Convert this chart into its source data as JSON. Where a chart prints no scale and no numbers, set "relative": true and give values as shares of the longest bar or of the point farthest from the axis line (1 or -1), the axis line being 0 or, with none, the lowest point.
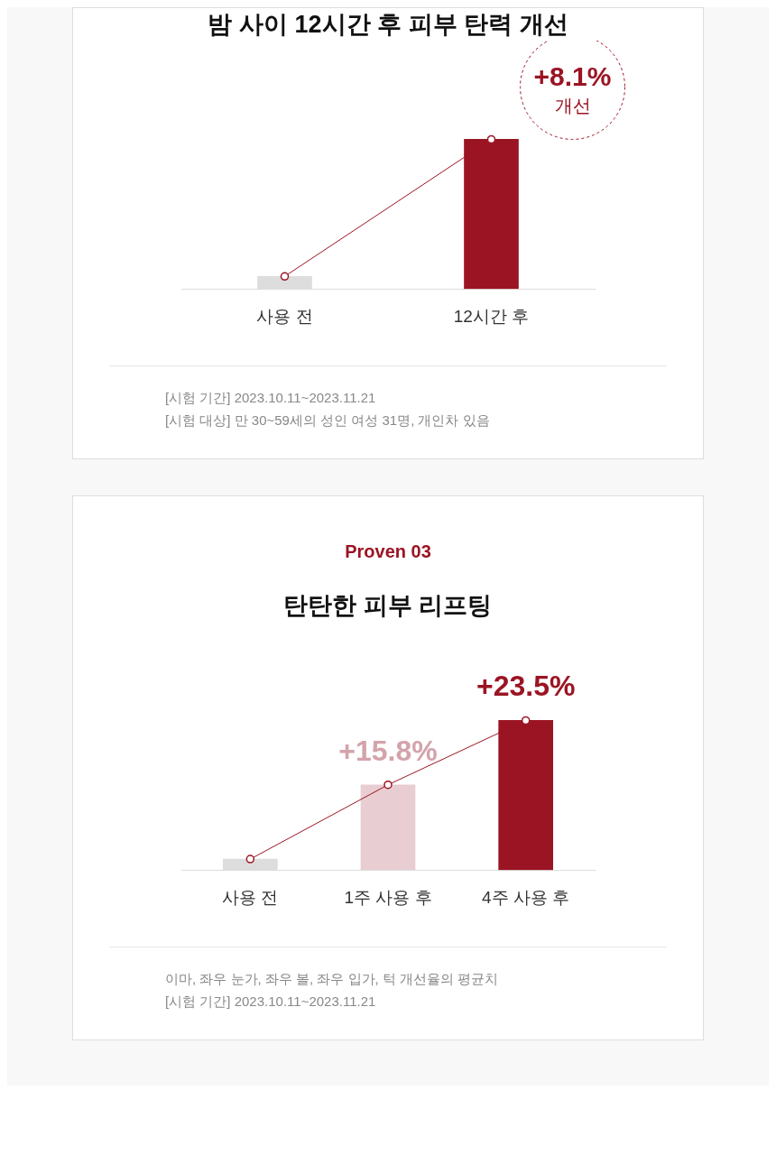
{
  "chart_data": [
    {
      "type": "bar",
      "title": "밤 사이 12시간 후 피부 탄력 개선",
      "categories": [
        "사용 전",
        "12시간 후"
      ],
      "relative": true,
      "series": [
        {
          "colors": [
            "#dddddd",
            "#9b1423"
          ],
          "values": [
            0.084,
            1
          ]
        },
        {
          "type": "line",
          "color": "#9b1423",
          "values": [
            0.084,
            1
          ],
          "marker": "circle"
        }
      ],
      "annotations": [
        {
          "text": "+8.1% 개선",
          "x": "12시간 후",
          "y": 1
        },
        "[시험 기간] 2023.10.11~2023.11.21",
        "[시험 대상] 만 30~59세의 성인 여성 31명, 개인차 있음"
      ]
    },
    {
      "type": "bar",
      "subtitle": "Proven 03",
      "title": "탄탄한 피부 리프팅",
      "categories": [
        "사용 전",
        "1주 사용 후",
        "4주 사용 후"
      ],
      "relative": true,
      "series": [
        {
          "colors": [
            "#dddddd",
            "#e8cdd2",
            "#9b1423"
          ],
          "values": [
            0.073,
            0.57,
            1
          ]
        },
        {
          "type": "line",
          "color": "#9b1423",
          "values": [
            0.073,
            0.57,
            1
          ],
          "marker": "circle"
        }
      ],
      "annotations": [
        {
          "text": "+15.8%",
          "x": "1주 사용 후",
          "y": 0.57
        },
        {
          "text": "+23.5%",
          "x": "4주 사용 후",
          "y": 1
        },
        "이마, 좌우 눈가, 좌우 볼, 좌우 입가, 턱 개선율의 평균치",
        "[시험 기간] 2023.10.11~2023.11.21"
      ]
    }
  ]
}
